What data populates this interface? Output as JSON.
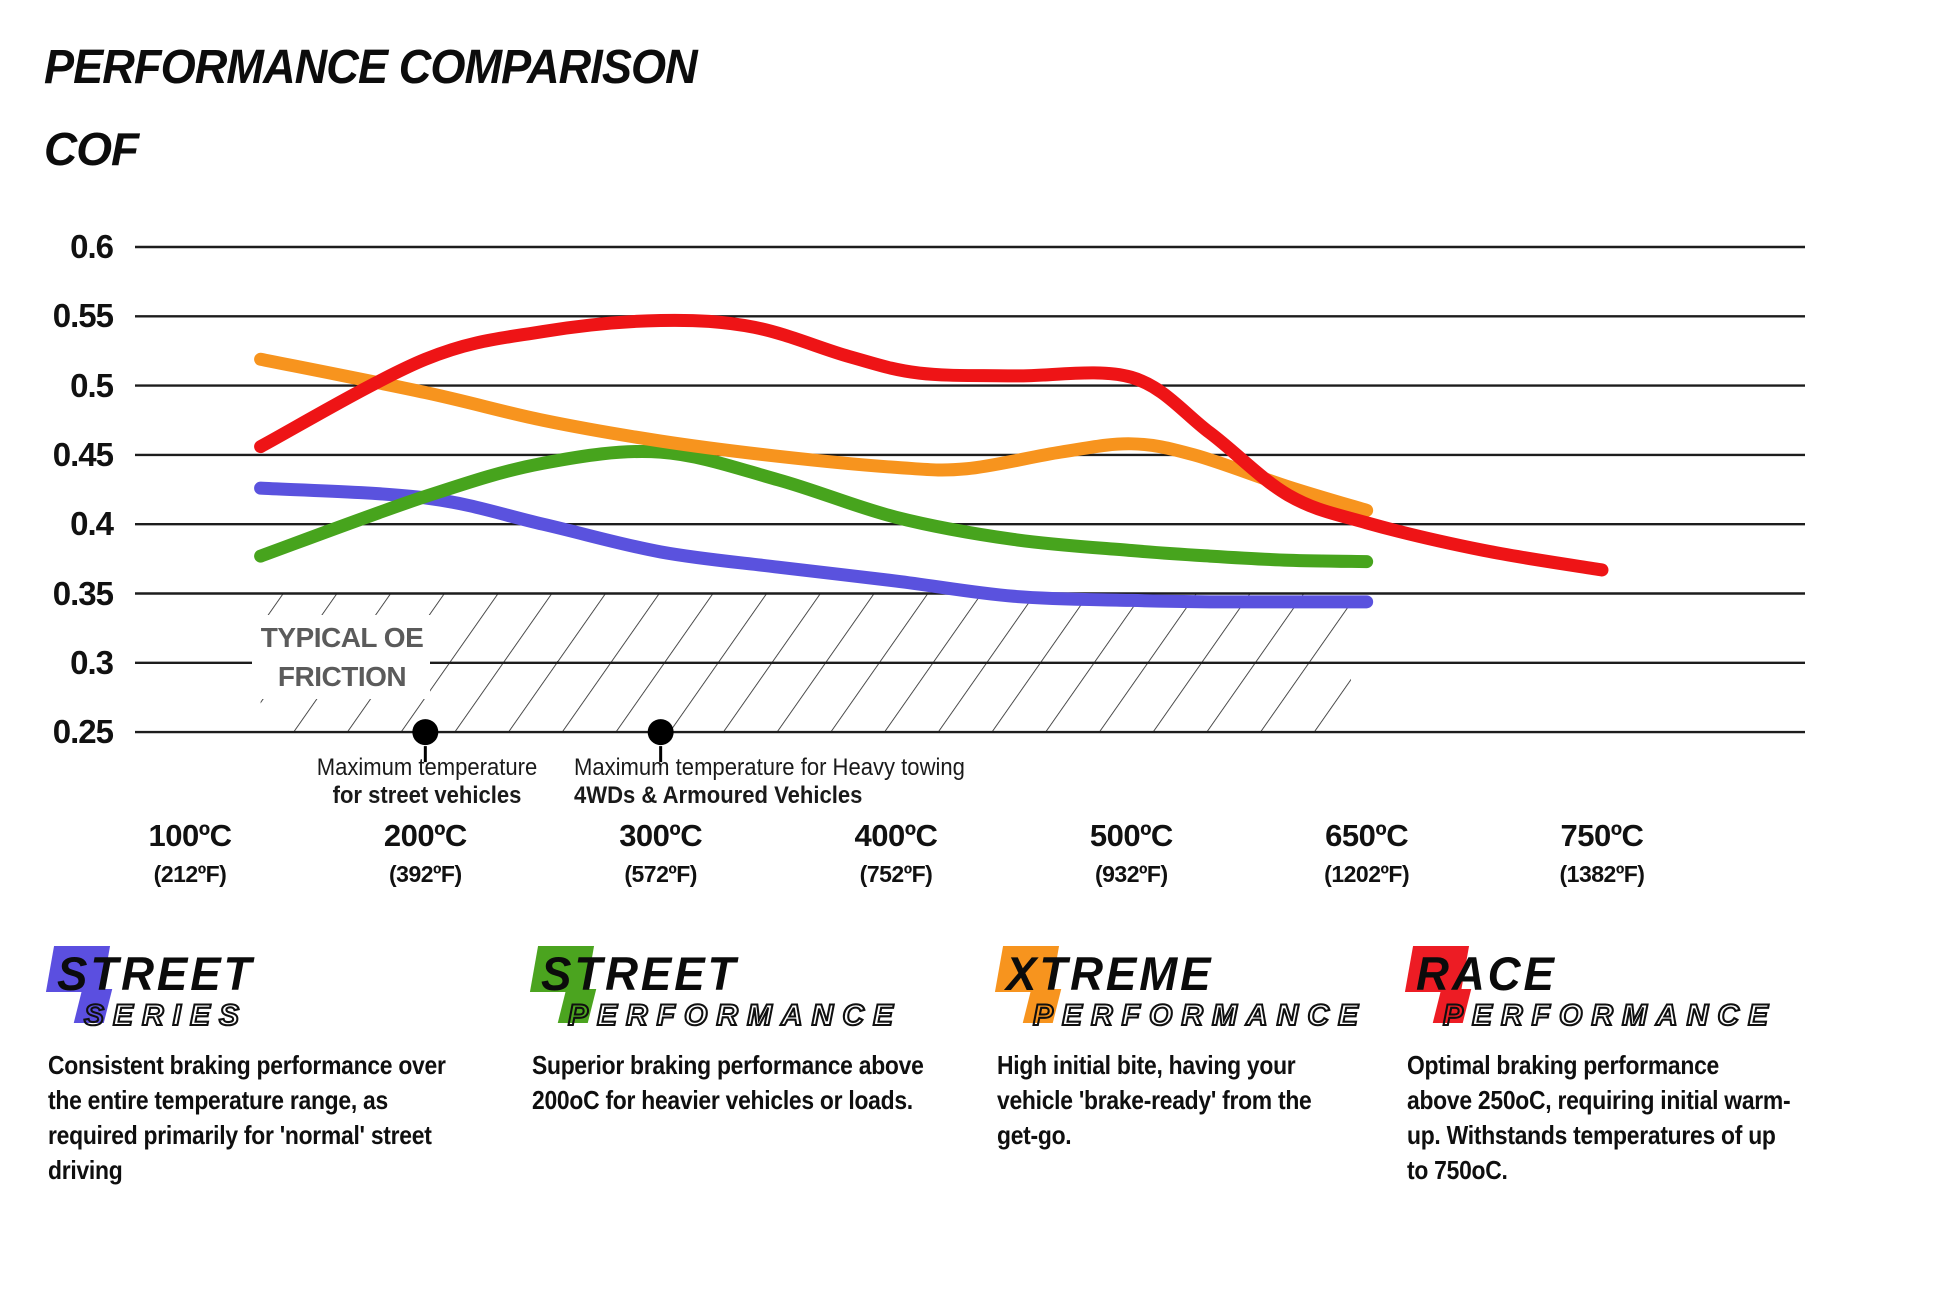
{
  "header": {
    "title": "PERFORMANCE COMPARISON"
  },
  "chart_data": {
    "type": "line",
    "title": "PERFORMANCE COMPARISON",
    "y_axis_title": "COF",
    "grid": true,
    "legend_position": "none",
    "ylim": [
      0.25,
      0.6
    ],
    "y_ticks": [
      "0.6",
      "0.55",
      "0.5",
      "0.45",
      "0.4",
      "0.35",
      "0.3",
      "0.25"
    ],
    "y_tick_values": [
      0.6,
      0.55,
      0.5,
      0.45,
      0.4,
      0.35,
      0.3,
      0.25
    ],
    "x_axis": {
      "note": "temperature axis, non-linear step between 500 and 650",
      "ticks": [
        {
          "temp": 100,
          "label": "100ºC",
          "sub": "(212ºF)"
        },
        {
          "temp": 200,
          "label": "200ºC",
          "sub": "(392ºF)"
        },
        {
          "temp": 300,
          "label": "300ºC",
          "sub": "(572ºF)"
        },
        {
          "temp": 400,
          "label": "400ºC",
          "sub": "(752ºF)"
        },
        {
          "temp": 500,
          "label": "500ºC",
          "sub": "(932ºF)"
        },
        {
          "temp": 650,
          "label": "650ºC",
          "sub": "(1202ºF)"
        },
        {
          "temp": 750,
          "label": "750ºC",
          "sub": "(1382ºF)"
        }
      ]
    },
    "series": [
      {
        "name": "Street Series",
        "color": "#5a52de",
        "points": [
          [
            130,
            0.426
          ],
          [
            200,
            0.419
          ],
          [
            250,
            0.4
          ],
          [
            300,
            0.38
          ],
          [
            350,
            0.369
          ],
          [
            400,
            0.359
          ],
          [
            450,
            0.348
          ],
          [
            500,
            0.345
          ],
          [
            550,
            0.344
          ],
          [
            600,
            0.344
          ],
          [
            650,
            0.344
          ]
        ]
      },
      {
        "name": "Street Performance",
        "color": "#47a41d",
        "points": [
          [
            130,
            0.377
          ],
          [
            200,
            0.42
          ],
          [
            250,
            0.444
          ],
          [
            300,
            0.452
          ],
          [
            350,
            0.432
          ],
          [
            400,
            0.405
          ],
          [
            450,
            0.389
          ],
          [
            500,
            0.381
          ],
          [
            550,
            0.377
          ],
          [
            600,
            0.374
          ],
          [
            650,
            0.373
          ]
        ]
      },
      {
        "name": "Xtreme Performance",
        "color": "#f7941e",
        "points": [
          [
            130,
            0.519
          ],
          [
            200,
            0.495
          ],
          [
            250,
            0.475
          ],
          [
            300,
            0.46
          ],
          [
            350,
            0.449
          ],
          [
            400,
            0.441
          ],
          [
            430,
            0.44
          ],
          [
            470,
            0.452
          ],
          [
            500,
            0.458
          ],
          [
            540,
            0.45
          ],
          [
            600,
            0.427
          ],
          [
            650,
            0.41
          ]
        ]
      },
      {
        "name": "Race Performance",
        "color": "#ee1416",
        "points": [
          [
            130,
            0.456
          ],
          [
            200,
            0.519
          ],
          [
            250,
            0.539
          ],
          [
            300,
            0.547
          ],
          [
            340,
            0.542
          ],
          [
            380,
            0.521
          ],
          [
            410,
            0.509
          ],
          [
            450,
            0.507
          ],
          [
            500,
            0.506
          ],
          [
            550,
            0.466
          ],
          [
            600,
            0.421
          ],
          [
            650,
            0.401
          ],
          [
            700,
            0.381
          ],
          [
            750,
            0.367
          ]
        ]
      }
    ],
    "oe_band": {
      "label_line1": "TYPICAL OE",
      "label_line2": "FRICTION",
      "cof_range": [
        0.25,
        0.35
      ],
      "temp_range": [
        130,
        640
      ]
    },
    "annotations": [
      {
        "temp": 200,
        "cof": 0.25,
        "line1": "Maximum temperature",
        "line2": "for street vehicles"
      },
      {
        "temp": 300,
        "cof": 0.25,
        "line1": "Maximum temperature for Heavy towing",
        "line2": "4WDs & Armoured Vehicles"
      }
    ]
  },
  "brands": [
    {
      "word1": "STREET",
      "word2": "SERIES",
      "color": "#5b4fe0",
      "description": "Consistent braking performance over\nthe entire temperature range, as\nrequired primarily for 'normal' street\ndriving"
    },
    {
      "word1": "STREET",
      "word2": "PERFORMANCE",
      "color": "#4ba41f",
      "description": "Superior braking performance above\n200oC for heavier vehicles or loads."
    },
    {
      "word1": "XTREME",
      "word2": "PERFORMANCE",
      "color": "#f7941e",
      "description": "High initial bite, having your\nvehicle 'brake-ready' from the\nget-go."
    },
    {
      "word1": "RACE",
      "word2": "PERFORMANCE",
      "color": "#ed1c24",
      "description": "Optimal braking performance\nabove 250oC, requiring initial warm-\nup. Withstands temperatures of up\nto 750oC."
    }
  ]
}
